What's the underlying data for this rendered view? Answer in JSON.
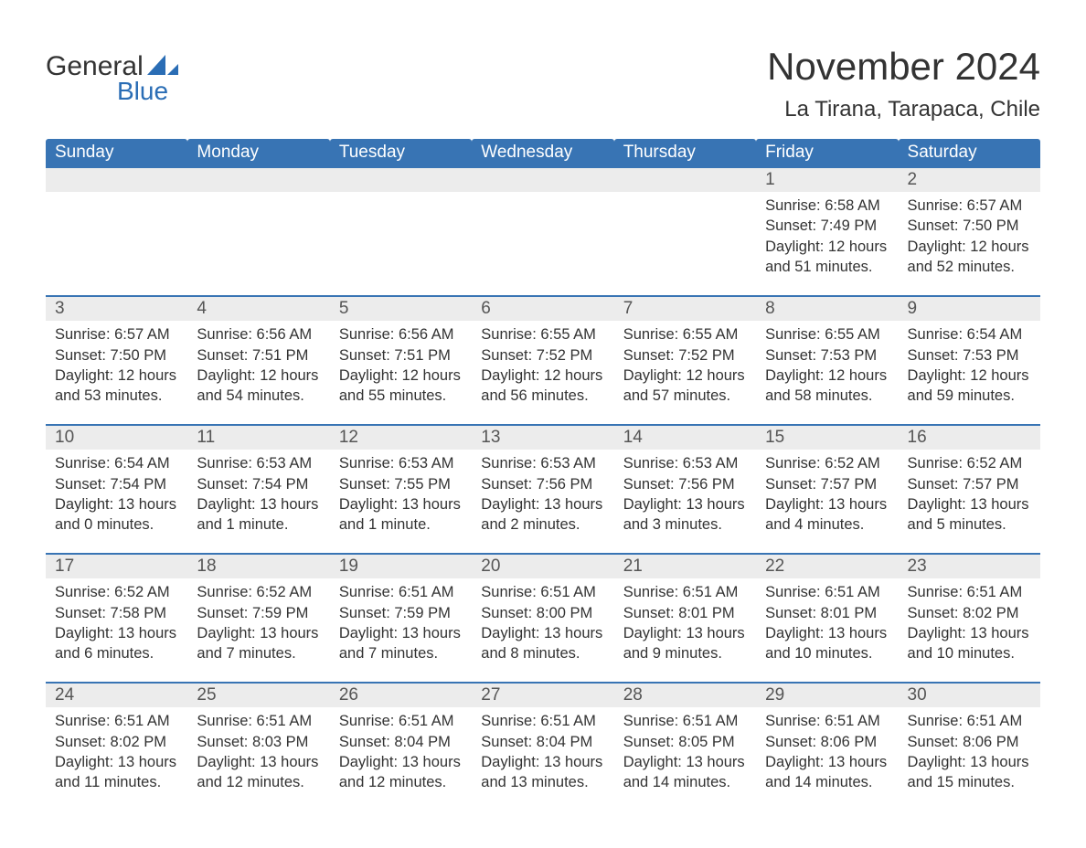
{
  "brand": {
    "name1": "General",
    "name2": "Blue",
    "sail_color": "#2a6db5"
  },
  "title": "November 2024",
  "location": "La Tirana, Tarapaca, Chile",
  "colors": {
    "header_bg": "#3874b4",
    "header_text": "#ffffff",
    "daynum_bg": "#ececec",
    "row_border": "#3874b4",
    "text": "#333333",
    "brand_blue": "#2a6db5",
    "page_bg": "#ffffff"
  },
  "typography": {
    "title_fontsize": 42,
    "location_fontsize": 24,
    "header_fontsize": 19,
    "daynum_fontsize": 19,
    "detail_fontsize": 16.5
  },
  "weekday_labels": [
    "Sunday",
    "Monday",
    "Tuesday",
    "Wednesday",
    "Thursday",
    "Friday",
    "Saturday"
  ],
  "weeks": [
    [
      null,
      null,
      null,
      null,
      null,
      {
        "n": "1",
        "sunrise": "Sunrise: 6:58 AM",
        "sunset": "Sunset: 7:49 PM",
        "day1": "Daylight: 12 hours",
        "day2": "and 51 minutes."
      },
      {
        "n": "2",
        "sunrise": "Sunrise: 6:57 AM",
        "sunset": "Sunset: 7:50 PM",
        "day1": "Daylight: 12 hours",
        "day2": "and 52 minutes."
      }
    ],
    [
      {
        "n": "3",
        "sunrise": "Sunrise: 6:57 AM",
        "sunset": "Sunset: 7:50 PM",
        "day1": "Daylight: 12 hours",
        "day2": "and 53 minutes."
      },
      {
        "n": "4",
        "sunrise": "Sunrise: 6:56 AM",
        "sunset": "Sunset: 7:51 PM",
        "day1": "Daylight: 12 hours",
        "day2": "and 54 minutes."
      },
      {
        "n": "5",
        "sunrise": "Sunrise: 6:56 AM",
        "sunset": "Sunset: 7:51 PM",
        "day1": "Daylight: 12 hours",
        "day2": "and 55 minutes."
      },
      {
        "n": "6",
        "sunrise": "Sunrise: 6:55 AM",
        "sunset": "Sunset: 7:52 PM",
        "day1": "Daylight: 12 hours",
        "day2": "and 56 minutes."
      },
      {
        "n": "7",
        "sunrise": "Sunrise: 6:55 AM",
        "sunset": "Sunset: 7:52 PM",
        "day1": "Daylight: 12 hours",
        "day2": "and 57 minutes."
      },
      {
        "n": "8",
        "sunrise": "Sunrise: 6:55 AM",
        "sunset": "Sunset: 7:53 PM",
        "day1": "Daylight: 12 hours",
        "day2": "and 58 minutes."
      },
      {
        "n": "9",
        "sunrise": "Sunrise: 6:54 AM",
        "sunset": "Sunset: 7:53 PM",
        "day1": "Daylight: 12 hours",
        "day2": "and 59 minutes."
      }
    ],
    [
      {
        "n": "10",
        "sunrise": "Sunrise: 6:54 AM",
        "sunset": "Sunset: 7:54 PM",
        "day1": "Daylight: 13 hours",
        "day2": "and 0 minutes."
      },
      {
        "n": "11",
        "sunrise": "Sunrise: 6:53 AM",
        "sunset": "Sunset: 7:54 PM",
        "day1": "Daylight: 13 hours",
        "day2": "and 1 minute."
      },
      {
        "n": "12",
        "sunrise": "Sunrise: 6:53 AM",
        "sunset": "Sunset: 7:55 PM",
        "day1": "Daylight: 13 hours",
        "day2": "and 1 minute."
      },
      {
        "n": "13",
        "sunrise": "Sunrise: 6:53 AM",
        "sunset": "Sunset: 7:56 PM",
        "day1": "Daylight: 13 hours",
        "day2": "and 2 minutes."
      },
      {
        "n": "14",
        "sunrise": "Sunrise: 6:53 AM",
        "sunset": "Sunset: 7:56 PM",
        "day1": "Daylight: 13 hours",
        "day2": "and 3 minutes."
      },
      {
        "n": "15",
        "sunrise": "Sunrise: 6:52 AM",
        "sunset": "Sunset: 7:57 PM",
        "day1": "Daylight: 13 hours",
        "day2": "and 4 minutes."
      },
      {
        "n": "16",
        "sunrise": "Sunrise: 6:52 AM",
        "sunset": "Sunset: 7:57 PM",
        "day1": "Daylight: 13 hours",
        "day2": "and 5 minutes."
      }
    ],
    [
      {
        "n": "17",
        "sunrise": "Sunrise: 6:52 AM",
        "sunset": "Sunset: 7:58 PM",
        "day1": "Daylight: 13 hours",
        "day2": "and 6 minutes."
      },
      {
        "n": "18",
        "sunrise": "Sunrise: 6:52 AM",
        "sunset": "Sunset: 7:59 PM",
        "day1": "Daylight: 13 hours",
        "day2": "and 7 minutes."
      },
      {
        "n": "19",
        "sunrise": "Sunrise: 6:51 AM",
        "sunset": "Sunset: 7:59 PM",
        "day1": "Daylight: 13 hours",
        "day2": "and 7 minutes."
      },
      {
        "n": "20",
        "sunrise": "Sunrise: 6:51 AM",
        "sunset": "Sunset: 8:00 PM",
        "day1": "Daylight: 13 hours",
        "day2": "and 8 minutes."
      },
      {
        "n": "21",
        "sunrise": "Sunrise: 6:51 AM",
        "sunset": "Sunset: 8:01 PM",
        "day1": "Daylight: 13 hours",
        "day2": "and 9 minutes."
      },
      {
        "n": "22",
        "sunrise": "Sunrise: 6:51 AM",
        "sunset": "Sunset: 8:01 PM",
        "day1": "Daylight: 13 hours",
        "day2": "and 10 minutes."
      },
      {
        "n": "23",
        "sunrise": "Sunrise: 6:51 AM",
        "sunset": "Sunset: 8:02 PM",
        "day1": "Daylight: 13 hours",
        "day2": "and 10 minutes."
      }
    ],
    [
      {
        "n": "24",
        "sunrise": "Sunrise: 6:51 AM",
        "sunset": "Sunset: 8:02 PM",
        "day1": "Daylight: 13 hours",
        "day2": "and 11 minutes."
      },
      {
        "n": "25",
        "sunrise": "Sunrise: 6:51 AM",
        "sunset": "Sunset: 8:03 PM",
        "day1": "Daylight: 13 hours",
        "day2": "and 12 minutes."
      },
      {
        "n": "26",
        "sunrise": "Sunrise: 6:51 AM",
        "sunset": "Sunset: 8:04 PM",
        "day1": "Daylight: 13 hours",
        "day2": "and 12 minutes."
      },
      {
        "n": "27",
        "sunrise": "Sunrise: 6:51 AM",
        "sunset": "Sunset: 8:04 PM",
        "day1": "Daylight: 13 hours",
        "day2": "and 13 minutes."
      },
      {
        "n": "28",
        "sunrise": "Sunrise: 6:51 AM",
        "sunset": "Sunset: 8:05 PM",
        "day1": "Daylight: 13 hours",
        "day2": "and 14 minutes."
      },
      {
        "n": "29",
        "sunrise": "Sunrise: 6:51 AM",
        "sunset": "Sunset: 8:06 PM",
        "day1": "Daylight: 13 hours",
        "day2": "and 14 minutes."
      },
      {
        "n": "30",
        "sunrise": "Sunrise: 6:51 AM",
        "sunset": "Sunset: 8:06 PM",
        "day1": "Daylight: 13 hours",
        "day2": "and 15 minutes."
      }
    ]
  ]
}
